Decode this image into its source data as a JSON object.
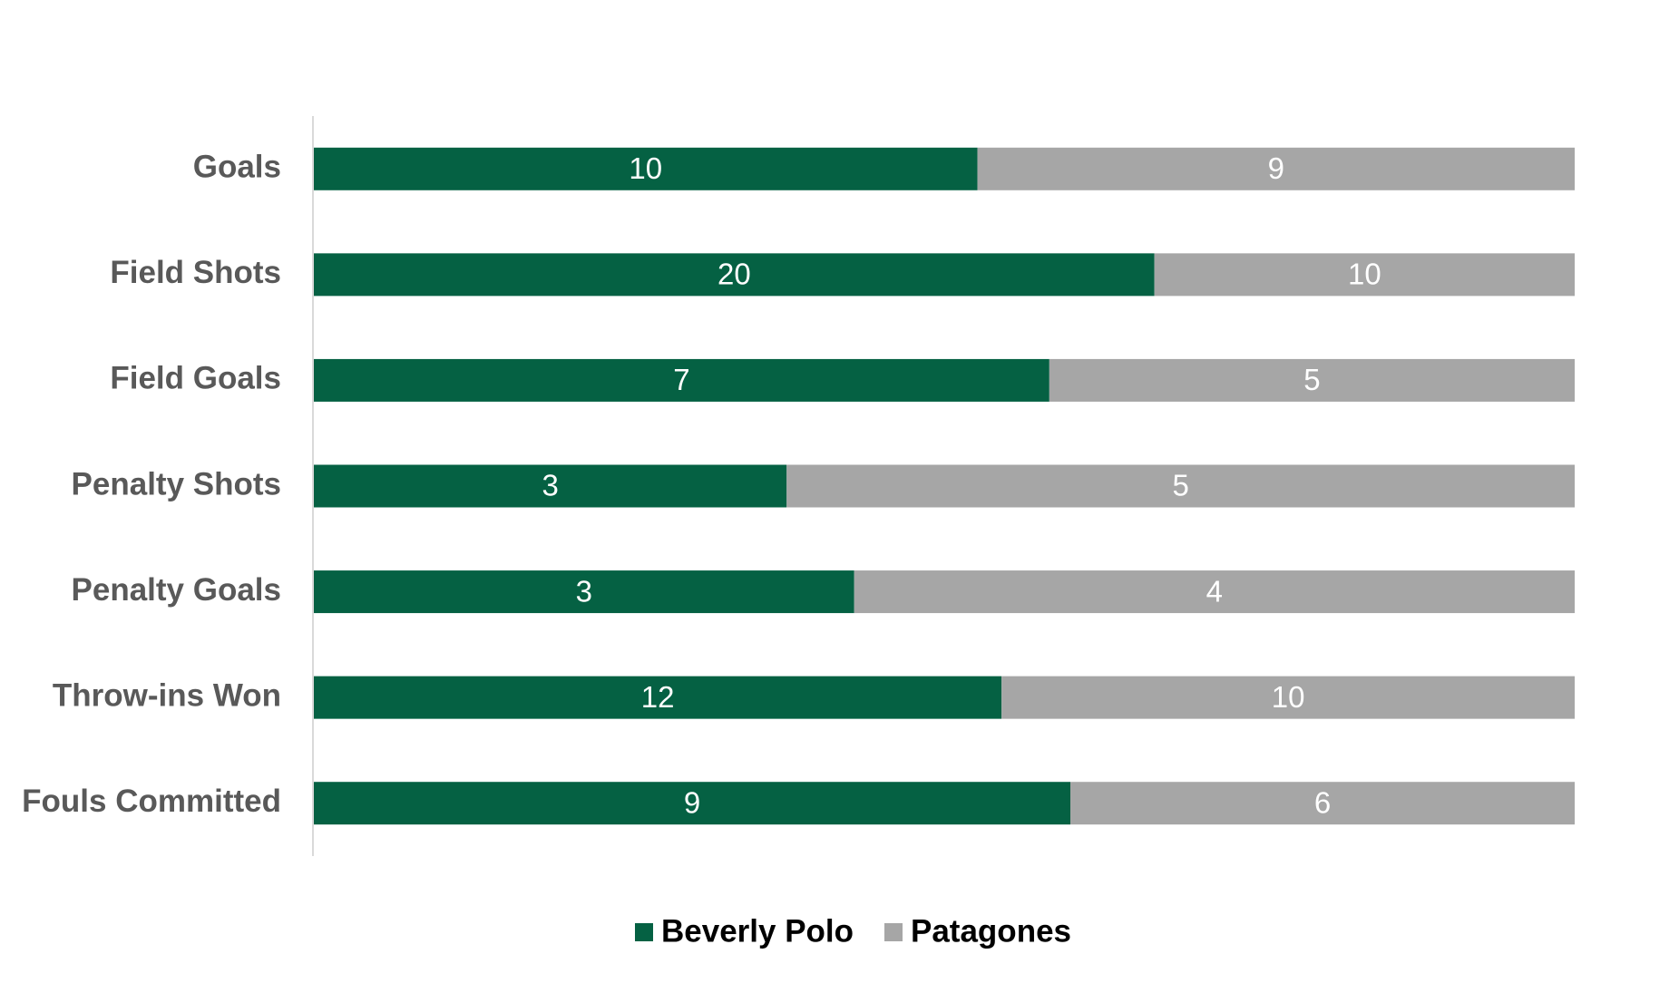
{
  "chart_data": {
    "type": "bar",
    "orientation": "horizontal",
    "stacking": "percent",
    "categories": [
      "Goals",
      "Field Shots",
      "Field Goals",
      "Penalty Shots",
      "Penalty Goals",
      "Throw-ins Won",
      "Fouls Committed"
    ],
    "series": [
      {
        "name": "Beverly Polo",
        "color": "#056143",
        "values": [
          10,
          20,
          7,
          3,
          3,
          12,
          9
        ]
      },
      {
        "name": "Patagones",
        "color": "#a6a6a6",
        "values": [
          9,
          10,
          5,
          5,
          4,
          10,
          6
        ]
      }
    ],
    "data_labels": true,
    "legend": "bottom"
  }
}
